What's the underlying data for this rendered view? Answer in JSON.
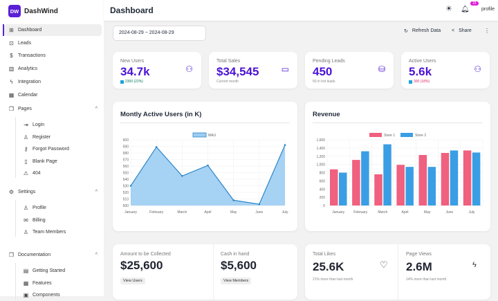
{
  "app": {
    "logo_text": "DW",
    "name": "DashWind"
  },
  "sidebar": {
    "items": [
      {
        "label": "Dashboard",
        "icon": "grid-icon"
      },
      {
        "label": "Leads",
        "icon": "inbox-icon"
      },
      {
        "label": "Transactions",
        "icon": "dollar-icon"
      },
      {
        "label": "Analytics",
        "icon": "bar-chart-icon"
      },
      {
        "label": "Integration",
        "icon": "bolt-icon"
      },
      {
        "label": "Calendar",
        "icon": "calendar-icon"
      }
    ],
    "groups": [
      {
        "label": "Pages",
        "items": [
          {
            "label": "Login"
          },
          {
            "label": "Register"
          },
          {
            "label": "Forgot Password"
          },
          {
            "label": "Blank Page"
          },
          {
            "label": "404"
          }
        ]
      },
      {
        "label": "Settings",
        "items": [
          {
            "label": "Profile"
          },
          {
            "label": "Billing"
          },
          {
            "label": "Team Members"
          }
        ]
      },
      {
        "label": "Documentation",
        "items": [
          {
            "label": "Getting Started"
          },
          {
            "label": "Features"
          },
          {
            "label": "Components"
          }
        ]
      }
    ]
  },
  "header": {
    "title": "Dashboard",
    "notification_count": "15",
    "profile_alt": "profile"
  },
  "toolbar": {
    "date_range": "2024-08-29 ~ 2024-08-29",
    "refresh": "Refresh Data",
    "share": "Share"
  },
  "stats": [
    {
      "title": "New Users",
      "value": "34.7k",
      "desc": "2300 (22%)"
    },
    {
      "title": "Total Sales",
      "value": "$34,545",
      "desc": "Current month"
    },
    {
      "title": "Pending Leads",
      "value": "450",
      "desc": "50 in hot leads"
    },
    {
      "title": "Active Users",
      "value": "5.6k",
      "desc": "300 (18%)"
    }
  ],
  "bottom": {
    "amount_title": "Amount to be Collected",
    "amount_value": "$25,600",
    "amount_btn": "View Users",
    "cash_title": "Cash in hand",
    "cash_value": "$5,600",
    "cash_btn": "View Members",
    "likes_title": "Total Likes",
    "likes_value": "25.6K",
    "likes_desc": "21% more than last month",
    "views_title": "Page Views",
    "views_value": "2.6M",
    "views_desc": "14% more than last month"
  },
  "colors": {
    "accent": "#5b1fd6",
    "store1": "#f0607f",
    "store2": "#3a9ee4",
    "mau": "#9ccdf3"
  },
  "chart_data": [
    {
      "type": "area",
      "title": "Montly Active Users (in K)",
      "categories": [
        "January",
        "February",
        "March",
        "April",
        "May",
        "June",
        "July"
      ],
      "series": [
        {
          "name": "MAU",
          "values": [
            530,
            589,
            545,
            561,
            508,
            502,
            592
          ]
        }
      ],
      "ylim": [
        500,
        600
      ],
      "yticks": [
        500,
        510,
        520,
        530,
        540,
        550,
        560,
        570,
        580,
        590,
        600
      ],
      "legend": "top",
      "grid": true
    },
    {
      "type": "bar",
      "title": "Revenue",
      "categories": [
        "January",
        "February",
        "March",
        "April",
        "May",
        "June",
        "July"
      ],
      "series": [
        {
          "name": "Store 1",
          "values": [
            880,
            1110,
            760,
            990,
            1230,
            1280,
            1340
          ]
        },
        {
          "name": "Store 2",
          "values": [
            800,
            1320,
            1490,
            940,
            940,
            1340,
            1290
          ]
        }
      ],
      "ylim": [
        0,
        1600
      ],
      "yticks": [
        "0",
        "200",
        "400",
        "600",
        "800",
        "1,000",
        "1,200",
        "1,400",
        "1,600"
      ],
      "legend": "top",
      "grid": true
    }
  ]
}
